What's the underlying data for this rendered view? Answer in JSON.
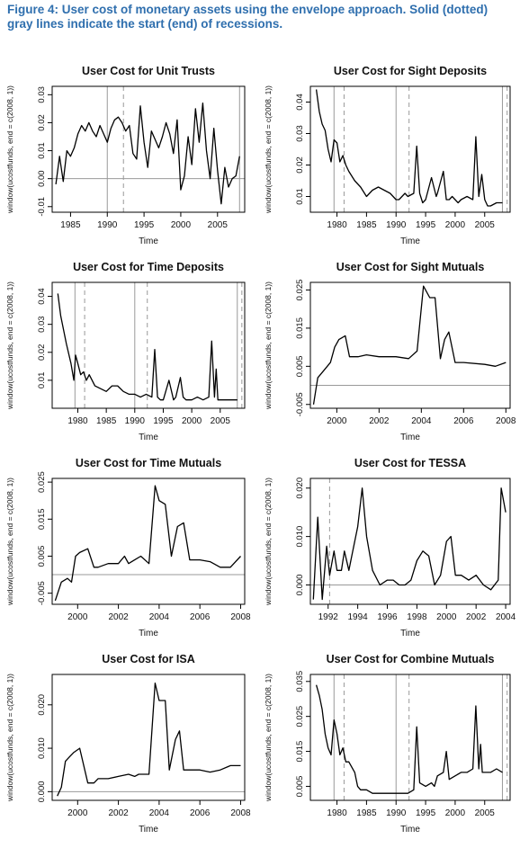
{
  "caption": "Figure 4: User cost of monetary assets using the envelope approach. Solid (dotted) gray lines indicate the start (end) of recessions.",
  "chart_data": [
    {
      "type": "line",
      "title": "User Cost for Unit Trusts",
      "xlabel": "Time",
      "ylabel": "window(ucostfunds, end = c(2008, 1))",
      "xlim": [
        1982.5,
        2008.7
      ],
      "ylim": [
        -0.012,
        0.033
      ],
      "xticks": [
        1985,
        1990,
        1995,
        2000,
        2005
      ],
      "yticks": [
        -0.01,
        0,
        0.01,
        0.02,
        0.03
      ],
      "ytick_labels": [
        "-0.01",
        "0.00",
        "0.01",
        "0.02",
        "0.03"
      ],
      "hline": 0,
      "recession_start": [
        1990,
        2008
      ],
      "recession_end": [
        1992.2,
        2008.8
      ],
      "x": [
        1983,
        1983.5,
        1984,
        1984.5,
        1985,
        1985.5,
        1986,
        1986.5,
        1987,
        1987.5,
        1988,
        1988.5,
        1989,
        1989.5,
        1990,
        1990.5,
        1991,
        1991.5,
        1992,
        1992.5,
        1993,
        1993.5,
        1994,
        1994.5,
        1995,
        1995.5,
        1996,
        1996.5,
        1997,
        1997.5,
        1998,
        1998.5,
        1999,
        1999.5,
        2000,
        2000.5,
        2001,
        2001.5,
        2002,
        2002.5,
        2003,
        2003.5,
        2004,
        2004.5,
        2005,
        2005.5,
        2006,
        2006.5,
        2007,
        2007.5,
        2008
      ],
      "y": [
        -0.002,
        0.008,
        -0.001,
        0.01,
        0.008,
        0.011,
        0.016,
        0.019,
        0.017,
        0.02,
        0.017,
        0.015,
        0.019,
        0.016,
        0.013,
        0.018,
        0.021,
        0.022,
        0.02,
        0.017,
        0.019,
        0.009,
        0.007,
        0.026,
        0.013,
        0.004,
        0.017,
        0.014,
        0.011,
        0.015,
        0.02,
        0.016,
        0.009,
        0.021,
        -0.004,
        0.001,
        0.015,
        0.005,
        0.025,
        0.013,
        0.027,
        0.01,
        0.0,
        0.018,
        0.003,
        -0.009,
        0.004,
        -0.003,
        0.0,
        0.001,
        0.008
      ]
    },
    {
      "type": "line",
      "title": "User Cost for Sight Deposits",
      "xlabel": "Time",
      "ylabel": "window(ucostfunds, end = c(2008, 1))",
      "xlim": [
        1975.5,
        2009.3
      ],
      "ylim": [
        0.005,
        0.045
      ],
      "xticks": [
        1980,
        1985,
        1990,
        1995,
        2000,
        2005
      ],
      "yticks": [
        0.01,
        0.02,
        0.03,
        0.04
      ],
      "ytick_labels": [
        "0.01",
        "0.02",
        "0.03",
        "0.04"
      ],
      "recession_start": [
        1979.5,
        1990,
        2008
      ],
      "recession_end": [
        1981.2,
        1992.2,
        2008.8
      ],
      "x": [
        1976.5,
        1977,
        1977.5,
        1978,
        1978.5,
        1979,
        1979.5,
        1980,
        1980.5,
        1981,
        1981.5,
        1982,
        1983,
        1984,
        1985,
        1986,
        1987,
        1988,
        1989,
        1990,
        1990.5,
        1991,
        1991.5,
        1992,
        1993,
        1993.5,
        1994,
        1994.5,
        1995,
        1996,
        1996.8,
        1997,
        1998,
        1998.5,
        1999,
        1999.5,
        2000,
        2000.5,
        2001,
        2002,
        2003,
        2003.5,
        2004,
        2004.5,
        2005,
        2005.5,
        2006,
        2007,
        2008
      ],
      "y": [
        0.044,
        0.037,
        0.033,
        0.031,
        0.025,
        0.021,
        0.028,
        0.027,
        0.021,
        0.023,
        0.02,
        0.018,
        0.015,
        0.013,
        0.01,
        0.012,
        0.013,
        0.012,
        0.011,
        0.009,
        0.009,
        0.01,
        0.011,
        0.01,
        0.011,
        0.026,
        0.011,
        0.008,
        0.009,
        0.016,
        0.01,
        0.011,
        0.018,
        0.009,
        0.009,
        0.01,
        0.009,
        0.008,
        0.009,
        0.01,
        0.009,
        0.029,
        0.01,
        0.017,
        0.009,
        0.007,
        0.007,
        0.008,
        0.008
      ]
    },
    {
      "type": "line",
      "title": "User Cost for Time Deposits",
      "xlabel": "Time",
      "ylabel": "window(ucostfunds, end = c(2008, 1))",
      "xlim": [
        1975.5,
        2009.3
      ],
      "ylim": [
        0.0,
        0.045
      ],
      "xticks": [
        1980,
        1985,
        1990,
        1995,
        2000,
        2005
      ],
      "yticks": [
        0.01,
        0.02,
        0.03,
        0.04
      ],
      "ytick_labels": [
        "0.01",
        "0.02",
        "0.03",
        "0.04"
      ],
      "recession_start": [
        1979.5,
        1990,
        2008
      ],
      "recession_end": [
        1981.2,
        1992.2,
        2008.8
      ],
      "x": [
        1976.5,
        1977,
        1978,
        1978.8,
        1979.3,
        1979.6,
        1980,
        1980.5,
        1981,
        1981.5,
        1982,
        1983,
        1984,
        1985,
        1986,
        1987,
        1988,
        1989,
        1990,
        1991,
        1992,
        1993,
        1993.5,
        1994,
        1994.5,
        1995,
        1996,
        1996.8,
        1997.2,
        1998,
        1998.5,
        1999,
        2000,
        2001,
        2002,
        2003,
        2003.5,
        2004,
        2004.3,
        2004.6,
        2005,
        2006,
        2007,
        2008
      ],
      "y": [
        0.041,
        0.033,
        0.023,
        0.016,
        0.01,
        0.019,
        0.016,
        0.012,
        0.013,
        0.01,
        0.012,
        0.008,
        0.007,
        0.006,
        0.008,
        0.008,
        0.006,
        0.005,
        0.005,
        0.004,
        0.005,
        0.004,
        0.021,
        0.004,
        0.003,
        0.003,
        0.01,
        0.003,
        0.004,
        0.011,
        0.004,
        0.003,
        0.003,
        0.004,
        0.003,
        0.004,
        0.024,
        0.004,
        0.014,
        0.003,
        0.003,
        0.003,
        0.003,
        0.003
      ]
    },
    {
      "type": "line",
      "title": "User Cost for Sight Mutuals",
      "xlabel": "Time",
      "ylabel": "window(ucostfunds, end = c(2008, 1))",
      "xlim": [
        1998.75,
        2008.2
      ],
      "ylim": [
        -0.006,
        0.027
      ],
      "xticks": [
        2000,
        2002,
        2004,
        2006,
        2008
      ],
      "yticks": [
        -0.005,
        0.005,
        0.015,
        0.025
      ],
      "ytick_labels": [
        "-0.005",
        "0.005",
        "0.015",
        "0.025"
      ],
      "hline": 0,
      "x": [
        1998.9,
        1999.1,
        1999.4,
        1999.7,
        1999.9,
        2000.1,
        2000.4,
        2000.6,
        2001.0,
        2001.4,
        2002.0,
        2002.8,
        2003.4,
        2003.8,
        2004.1,
        2004.4,
        2004.65,
        2004.9,
        2005.1,
        2005.3,
        2005.6,
        2006.0,
        2007.0,
        2007.5,
        2008.0
      ],
      "y": [
        -0.005,
        0.002,
        0.004,
        0.006,
        0.01,
        0.012,
        0.013,
        0.0075,
        0.0075,
        0.008,
        0.0075,
        0.0075,
        0.007,
        0.009,
        0.026,
        0.023,
        0.023,
        0.007,
        0.012,
        0.014,
        0.006,
        0.006,
        0.0055,
        0.005,
        0.006
      ]
    },
    {
      "type": "line",
      "title": "User Cost for Time Mutuals",
      "xlabel": "Time",
      "ylabel": "window(ucostfunds, end = c(2008, 1))",
      "xlim": [
        1998.75,
        2008.2
      ],
      "ylim": [
        -0.008,
        0.026
      ],
      "xticks": [
        2000,
        2002,
        2004,
        2006,
        2008
      ],
      "yticks": [
        -0.005,
        0.005,
        0.015,
        0.025
      ],
      "ytick_labels": [
        "-0.005",
        "0.005",
        "0.015",
        "0.025"
      ],
      "hline": 0,
      "x": [
        1998.9,
        1999.2,
        1999.5,
        1999.7,
        1999.9,
        2000.1,
        2000.5,
        2000.8,
        2001.0,
        2001.5,
        2002.0,
        2002.3,
        2002.5,
        2002.8,
        2003.1,
        2003.5,
        2003.8,
        2004.0,
        2004.3,
        2004.6,
        2004.9,
        2005.2,
        2005.5,
        2006.0,
        2006.5,
        2007.0,
        2007.5,
        2008.0
      ],
      "y": [
        -0.007,
        -0.002,
        -0.001,
        -0.002,
        0.005,
        0.006,
        0.007,
        0.002,
        0.002,
        0.003,
        0.003,
        0.005,
        0.003,
        0.004,
        0.005,
        0.003,
        0.024,
        0.02,
        0.019,
        0.005,
        0.013,
        0.014,
        0.004,
        0.004,
        0.0035,
        0.002,
        0.002,
        0.005
      ]
    },
    {
      "type": "line",
      "title": "User Cost for TESSA",
      "xlabel": "Time",
      "ylabel": "window(ucostfunds, end = c(2008, 1))",
      "xlim": [
        1990.8,
        2004.3
      ],
      "ylim": [
        -0.004,
        0.022
      ],
      "xticks": [
        1992,
        1994,
        1996,
        1998,
        2000,
        2002,
        2004
      ],
      "yticks": [
        0,
        0.01,
        0.02
      ],
      "ytick_labels": [
        "0.000",
        "0.010",
        "0.020"
      ],
      "hline": 0,
      "recession_end": [
        1992.1
      ],
      "x": [
        1991.0,
        1991.3,
        1991.6,
        1991.9,
        1992.1,
        1992.4,
        1992.6,
        1992.9,
        1993.1,
        1993.4,
        1993.6,
        1994.0,
        1994.3,
        1994.6,
        1995.0,
        1995.5,
        1996.0,
        1996.4,
        1996.8,
        1997.2,
        1997.6,
        1998.0,
        1998.4,
        1998.8,
        1999.2,
        1999.6,
        2000.0,
        2000.3,
        2000.6,
        2001.0,
        2001.5,
        2002.0,
        2002.5,
        2003.0,
        2003.5,
        2003.7,
        2004.0
      ],
      "y": [
        -0.003,
        0.014,
        -0.003,
        0.008,
        0.002,
        0.007,
        0.003,
        0.003,
        0.007,
        0.003,
        0.006,
        0.012,
        0.02,
        0.01,
        0.003,
        0.0,
        0.001,
        0.001,
        0.0,
        0.0,
        0.001,
        0.005,
        0.007,
        0.006,
        0.0,
        0.002,
        0.009,
        0.01,
        0.002,
        0.002,
        0.001,
        0.002,
        0.0,
        -0.001,
        0.001,
        0.02,
        0.015
      ]
    },
    {
      "type": "line",
      "title": "User Cost for ISA",
      "xlabel": "Time",
      "ylabel": "window(ucostfunds, end = c(2008, 1))",
      "xlim": [
        1998.75,
        2008.2
      ],
      "ylim": [
        -0.002,
        0.027
      ],
      "xticks": [
        2000,
        2002,
        2004,
        2006,
        2008
      ],
      "yticks": [
        0,
        0.01,
        0.02
      ],
      "ytick_labels": [
        "0.000",
        "0.010",
        "0.020"
      ],
      "hline": 0,
      "x": [
        1999.0,
        1999.2,
        1999.4,
        1999.6,
        1999.8,
        2000.1,
        2000.5,
        2000.8,
        2001.0,
        2001.5,
        2002.0,
        2002.5,
        2002.8,
        2003.0,
        2003.5,
        2003.8,
        2004.0,
        2004.3,
        2004.5,
        2004.8,
        2005.0,
        2005.2,
        2005.5,
        2006.0,
        2006.5,
        2007.0,
        2007.5,
        2008.0
      ],
      "y": [
        -0.001,
        0.001,
        0.007,
        0.008,
        0.009,
        0.01,
        0.002,
        0.002,
        0.003,
        0.003,
        0.0035,
        0.004,
        0.0035,
        0.004,
        0.004,
        0.025,
        0.021,
        0.021,
        0.005,
        0.012,
        0.014,
        0.005,
        0.005,
        0.005,
        0.0045,
        0.005,
        0.006,
        0.006
      ]
    },
    {
      "type": "line",
      "title": "User Cost for Combine Mutuals",
      "xlabel": "Time",
      "ylabel": "window(ucostfunds, end = c(2008, 1))",
      "xlim": [
        1975.5,
        2009.3
      ],
      "ylim": [
        0.001,
        0.037
      ],
      "xticks": [
        1980,
        1985,
        1990,
        1995,
        2000,
        2005
      ],
      "yticks": [
        0.005,
        0.015,
        0.025,
        0.035
      ],
      "ytick_labels": [
        "0.005",
        "0.015",
        "0.025",
        "0.035"
      ],
      "recession_start": [
        1979.5,
        1990,
        2008
      ],
      "recession_end": [
        1981.2,
        1992.2,
        2008.8
      ],
      "x": [
        1976.5,
        1977,
        1977.5,
        1978,
        1978.5,
        1979,
        1979.5,
        1980,
        1980.5,
        1981,
        1981.5,
        1982,
        1983,
        1983.5,
        1984,
        1985,
        1986,
        1987,
        1988,
        1989,
        1990,
        1991,
        1992,
        1993,
        1993.5,
        1994,
        1995,
        1996,
        1996.5,
        1997,
        1998,
        1998.5,
        1999,
        2000,
        2001,
        2002,
        2003,
        2003.5,
        2004,
        2004.3,
        2004.6,
        2005,
        2006,
        2007,
        2008
      ],
      "y": [
        0.034,
        0.031,
        0.027,
        0.02,
        0.016,
        0.014,
        0.024,
        0.02,
        0.014,
        0.016,
        0.012,
        0.012,
        0.009,
        0.005,
        0.004,
        0.004,
        0.003,
        0.003,
        0.003,
        0.003,
        0.003,
        0.003,
        0.003,
        0.004,
        0.022,
        0.006,
        0.005,
        0.006,
        0.005,
        0.008,
        0.009,
        0.015,
        0.007,
        0.008,
        0.009,
        0.009,
        0.01,
        0.028,
        0.01,
        0.017,
        0.009,
        0.009,
        0.009,
        0.01,
        0.009
      ]
    }
  ]
}
